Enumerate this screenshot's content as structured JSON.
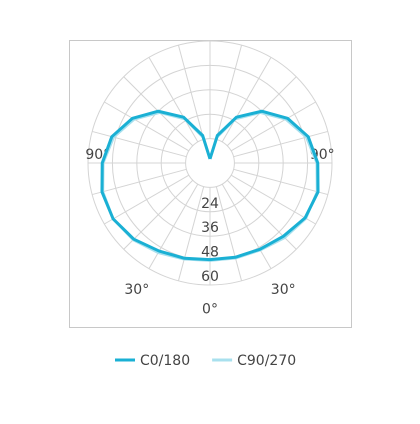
{
  "chart_data": {
    "type": "polar",
    "x": [
      -180,
      -165,
      -150,
      -135,
      -120,
      -105,
      -90,
      -75,
      -60,
      -45,
      -30,
      -15,
      0,
      15,
      30,
      45,
      60,
      75,
      90,
      105,
      120,
      135,
      150,
      165,
      180
    ],
    "series": [
      {
        "name": "C0/180",
        "color": "#1ab0d4",
        "values": [
          2,
          14,
          26,
          36,
          44,
          50,
          53,
          55,
          55,
          53,
          50,
          48.5,
          47.5,
          48,
          49,
          51,
          54,
          55,
          53,
          50,
          44,
          36,
          26,
          14,
          2
        ]
      },
      {
        "name": "C90/270",
        "color": "#a8e0ee",
        "values": [
          2,
          13,
          25,
          35,
          43,
          49,
          52.5,
          54.5,
          55,
          53.5,
          51,
          49,
          48,
          48.5,
          49.5,
          52,
          54.5,
          54.5,
          52.5,
          49,
          43,
          35,
          25,
          13,
          2
        ]
      }
    ],
    "rlim": [
      0,
      60
    ],
    "rticks": [
      {
        "value": 12,
        "label": null
      },
      24,
      36,
      48,
      60
    ],
    "xticks": [
      {
        "value": -90,
        "label": "90°"
      },
      {
        "value": -30,
        "label": "30°"
      },
      {
        "value": 0,
        "label": "0°"
      },
      {
        "value": 30,
        "label": "30°"
      },
      {
        "value": 90,
        "label": "90°"
      }
    ],
    "angle_grid_step": 15,
    "legend": "bottom"
  }
}
